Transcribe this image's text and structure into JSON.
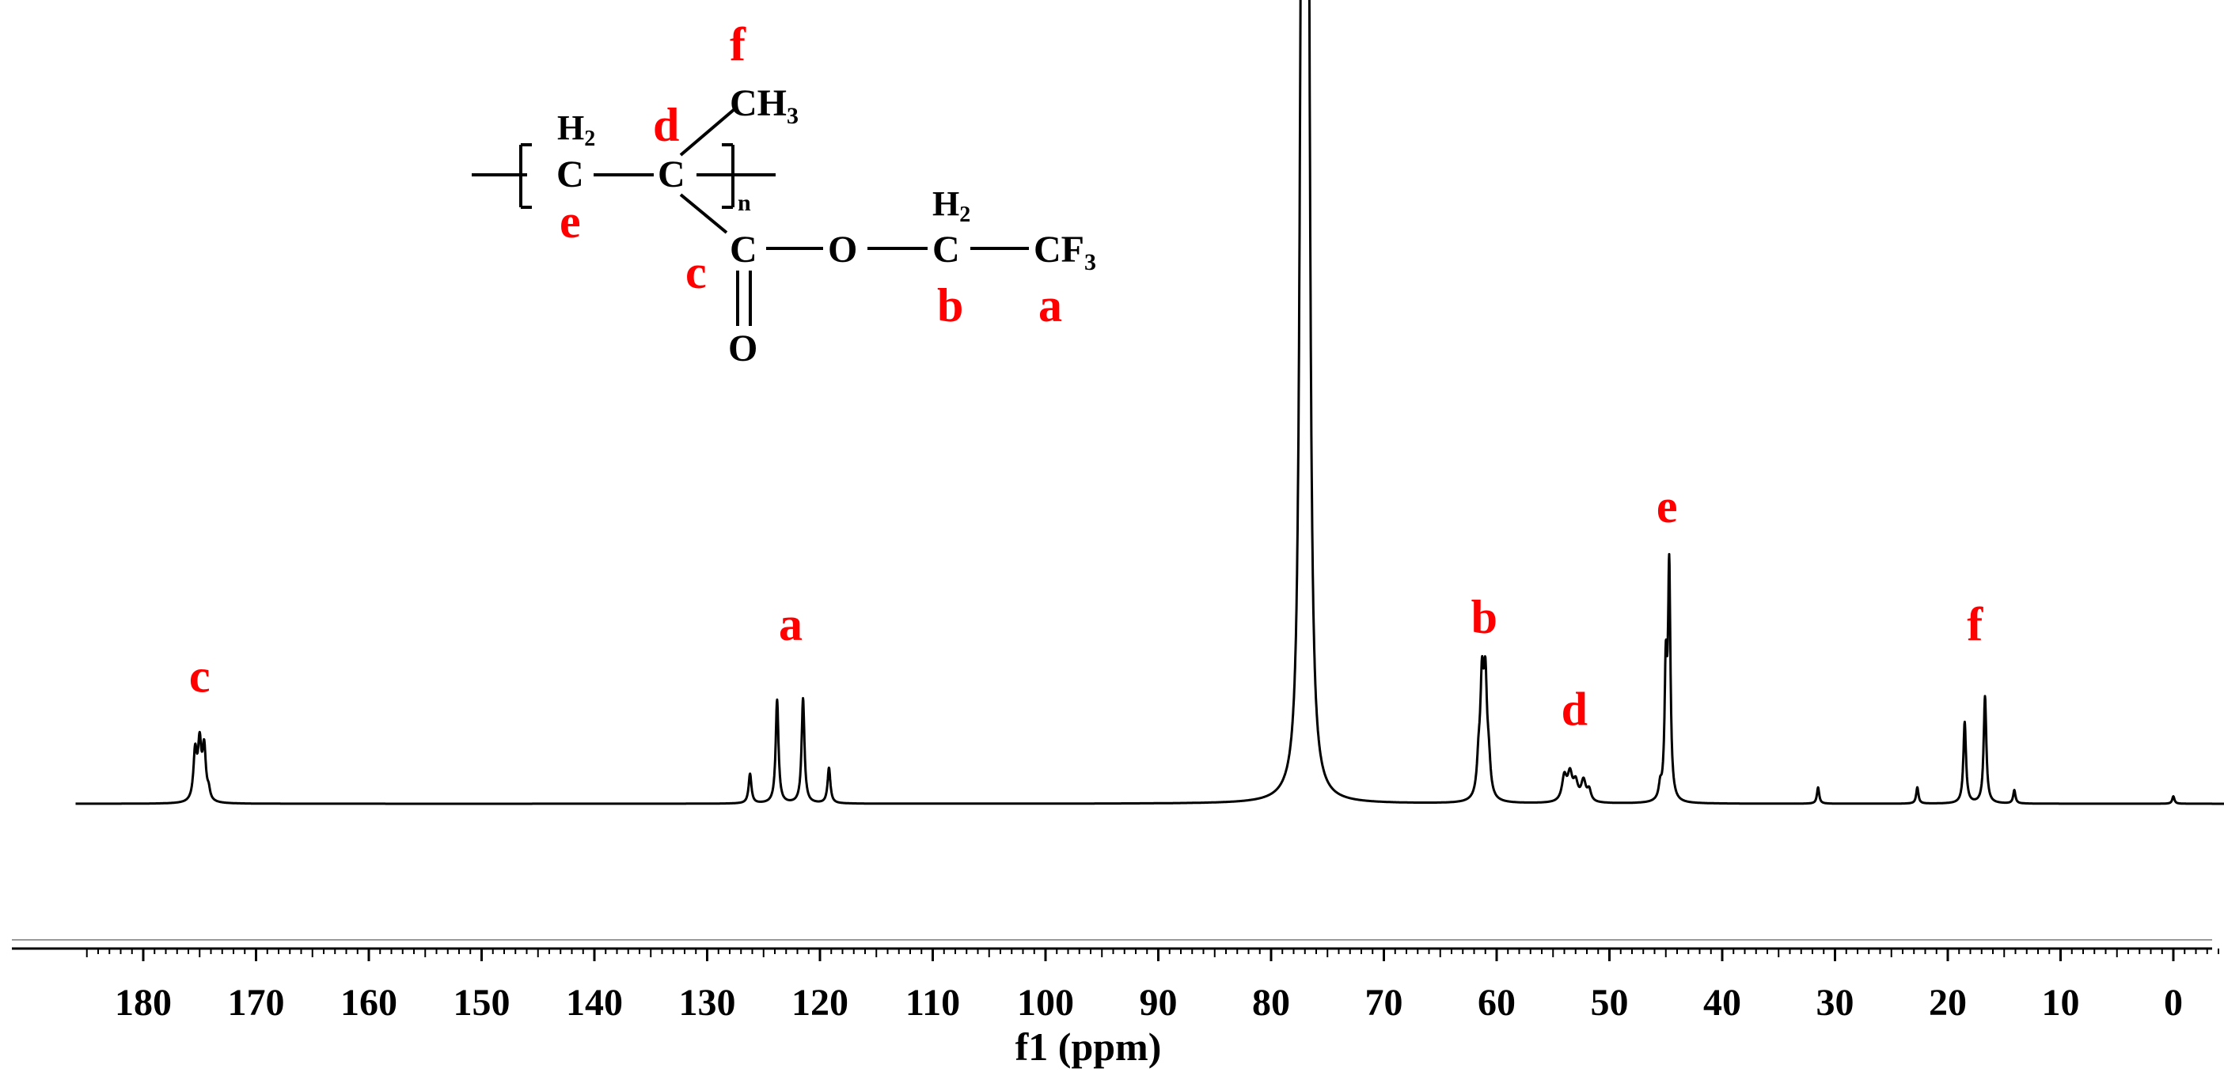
{
  "chart_data": {
    "type": "line",
    "xlabel": "f1 (ppm)",
    "xlim": [
      186,
      -5
    ],
    "x_reversed": true,
    "ticks": [
      180,
      170,
      160,
      150,
      140,
      130,
      120,
      110,
      100,
      90,
      80,
      70,
      60,
      50,
      40,
      30,
      20,
      10,
      0
    ],
    "baseline": 0,
    "ymax": 100,
    "peaks": [
      {
        "ppm": 175.4,
        "height": 6.5,
        "width": 0.18
      },
      {
        "ppm": 175.0,
        "height": 7.4,
        "width": 0.18
      },
      {
        "ppm": 174.6,
        "height": 7.0,
        "width": 0.18
      },
      {
        "ppm": 174.2,
        "height": 1.2,
        "width": 0.15
      },
      {
        "ppm": 126.2,
        "height": 4.0,
        "width": 0.15
      },
      {
        "ppm": 123.8,
        "height": 14.0,
        "width": 0.15
      },
      {
        "ppm": 121.5,
        "height": 14.2,
        "width": 0.15
      },
      {
        "ppm": 119.2,
        "height": 4.8,
        "width": 0.15
      },
      {
        "ppm": 77.3,
        "height": 99.0,
        "width": 0.2
      },
      {
        "ppm": 77.0,
        "height": 100.0,
        "width": 0.2
      },
      {
        "ppm": 76.7,
        "height": 98.5,
        "width": 0.2
      },
      {
        "ppm": 61.6,
        "height": 4.2,
        "width": 0.18
      },
      {
        "ppm": 61.3,
        "height": 14.5,
        "width": 0.18
      },
      {
        "ppm": 61.0,
        "height": 14.5,
        "width": 0.18
      },
      {
        "ppm": 60.7,
        "height": 4.0,
        "width": 0.18
      },
      {
        "ppm": 54.0,
        "height": 3.3,
        "width": 0.25
      },
      {
        "ppm": 53.5,
        "height": 3.5,
        "width": 0.25
      },
      {
        "ppm": 53.0,
        "height": 2.4,
        "width": 0.25
      },
      {
        "ppm": 52.3,
        "height": 2.8,
        "width": 0.25
      },
      {
        "ppm": 51.8,
        "height": 1.5,
        "width": 0.2
      },
      {
        "ppm": 45.5,
        "height": 1.8,
        "width": 0.15
      },
      {
        "ppm": 45.0,
        "height": 17.0,
        "width": 0.13
      },
      {
        "ppm": 44.7,
        "height": 31.0,
        "width": 0.13
      },
      {
        "ppm": 31.5,
        "height": 2.2,
        "width": 0.12
      },
      {
        "ppm": 22.7,
        "height": 2.2,
        "width": 0.12
      },
      {
        "ppm": 18.5,
        "height": 11.0,
        "width": 0.14
      },
      {
        "ppm": 16.7,
        "height": 14.5,
        "width": 0.14
      },
      {
        "ppm": 14.1,
        "height": 1.8,
        "width": 0.12
      },
      {
        "ppm": 0.0,
        "height": 1.0,
        "width": 0.12
      }
    ],
    "peak_labels": [
      {
        "text": "c",
        "ppm": 175.0,
        "height": 13
      },
      {
        "text": "a",
        "ppm": 122.6,
        "height": 20
      },
      {
        "text": "b",
        "ppm": 61.1,
        "height": 21
      },
      {
        "text": "d",
        "ppm": 53.1,
        "height": 8.5
      },
      {
        "text": "e",
        "ppm": 44.9,
        "height": 36
      },
      {
        "text": "f",
        "ppm": 17.6,
        "height": 20
      }
    ]
  },
  "structure": {
    "h2_left": "H",
    "h2_left_sub": "2",
    "c_left": "C",
    "c_center": "C",
    "ch3": "CH",
    "ch3_sub": "3",
    "n_sub": "n",
    "c_carbonyl": "C",
    "o_double": "O",
    "o_ester": "O",
    "h2_right": "H",
    "h2_right_sub": "2",
    "c_right": "C",
    "cf3": "CF",
    "cf3_sub": "3",
    "label_f": "f",
    "label_d": "d",
    "label_e": "e",
    "label_c": "c",
    "label_b": "b",
    "label_a": "a"
  },
  "colors": {
    "label_red": "#ff0000",
    "line": "#000000"
  }
}
